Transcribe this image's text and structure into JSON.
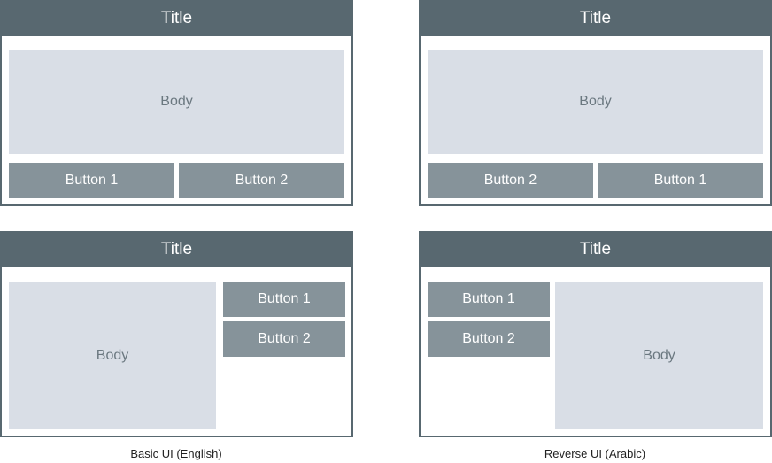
{
  "panels": {
    "basic_top": {
      "title": "Title",
      "body": "Body",
      "buttons": [
        "Button 1",
        "Button 2"
      ]
    },
    "reverse_top": {
      "title": "Title",
      "body": "Body",
      "buttons": [
        "Button 2",
        "Button 1"
      ]
    },
    "basic_bottom": {
      "title": "Title",
      "body": "Body",
      "buttons": [
        "Button 1",
        "Button 2"
      ]
    },
    "reverse_bottom": {
      "title": "Title",
      "body": "Body",
      "buttons": [
        "Button 1",
        "Button 2"
      ]
    }
  },
  "captions": {
    "basic": "Basic UI (English)",
    "reverse": "Reverse UI (Arabic)"
  },
  "colors": {
    "titlebar": "#586870",
    "body": "#d9dee6",
    "button": "#86939a"
  }
}
